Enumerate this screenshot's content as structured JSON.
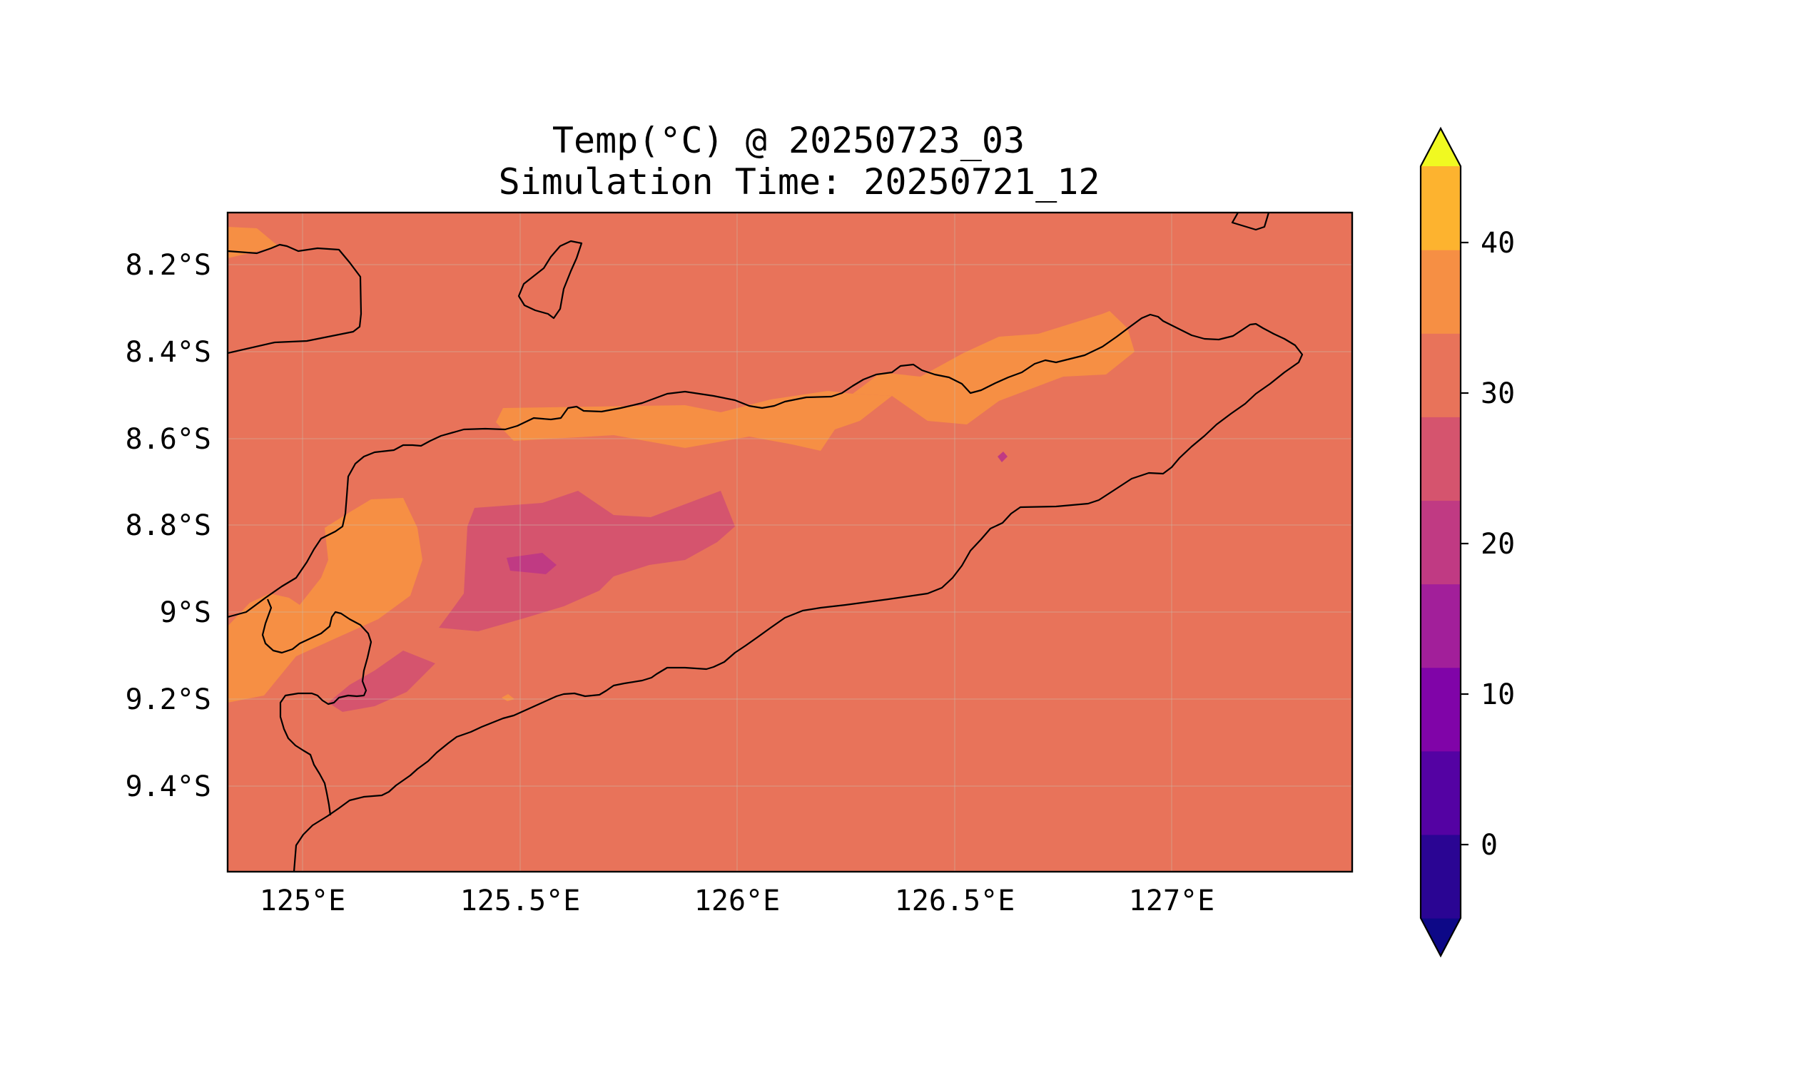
{
  "title": {
    "line1": "Temp(°C) @ 20250723_03",
    "line2": "Simulation Time: 20250721_12"
  },
  "map": {
    "lon_ticks": [
      "125°E",
      "125.5°E",
      "126°E",
      "126.5°E",
      "127°E"
    ],
    "lat_ticks": [
      "8.2°S",
      "8.4°S",
      "8.6°S",
      "8.8°S",
      "9°S",
      "9.2°S",
      "9.4°S"
    ],
    "background_level_color": "#e8735a"
  },
  "colorbar": {
    "tick_labels": [
      "40",
      "30",
      "20",
      "10",
      "0"
    ],
    "levels": [
      -5,
      0,
      5,
      10,
      15,
      20,
      25,
      30,
      35,
      40,
      45
    ],
    "colors": [
      "#0d0887",
      "#2a0593",
      "#5402a3",
      "#8004a8",
      "#a21f9a",
      "#c03a83",
      "#d5546e",
      "#e8735a",
      "#f68f44",
      "#fdb32f",
      "#f0f921"
    ],
    "extend": "both",
    "cmap": "plasma"
  },
  "chart_data": {
    "type": "heatmap",
    "title": "Temp(°C) @ 20250723_03\nSimulation Time: 20250721_12",
    "x_range_lon": [
      124.82,
      127.42
    ],
    "y_range_lat": [
      -9.6,
      -8.08
    ],
    "dominant_level": "25-30",
    "regions": [
      {
        "level": "30-35",
        "description": "north coast strip and northwest coast"
      },
      {
        "level": "35-40",
        "description": "small patch at northwest corner"
      },
      {
        "level": "20-25",
        "description": "central highlands patch"
      },
      {
        "level": "15-20",
        "description": "small core within highlands"
      }
    ]
  }
}
